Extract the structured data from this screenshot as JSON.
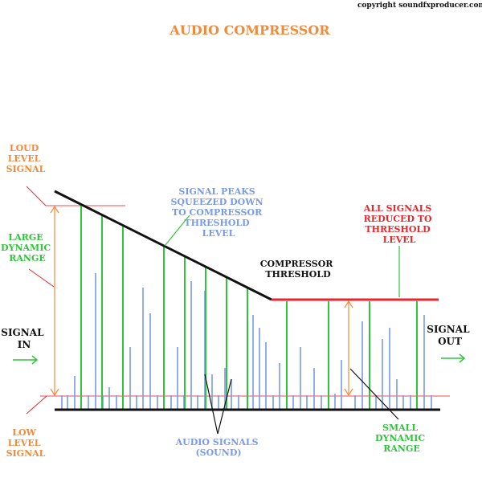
{
  "copyright": "copyright soundfxproducer.com",
  "title": "AUDIO COMPRESSOR",
  "labels": {
    "loud_level_signal": [
      "LOUD",
      "LEVEL",
      "SIGNAL"
    ],
    "large_dynamic_range": [
      "LARGE",
      "DYNAMIC",
      "RANGE"
    ],
    "signal_in": [
      "SIGNAL",
      "IN"
    ],
    "low_level_signal": [
      "LOW",
      "LEVEL",
      "SIGNAL"
    ],
    "signal_peaks": [
      "SIGNAL PEAKS",
      "SQUEEZED DOWN",
      "TO COMPRESSOR",
      "THRESHOLD",
      "LEVEL"
    ],
    "all_signals_reduced": [
      "ALL SIGNALS",
      "REDUCED TO",
      "THRESHOLD",
      "LEVEL"
    ],
    "compressor_threshold": [
      "COMPRESSOR",
      "THRESHOLD"
    ],
    "signal_out": [
      "SIGNAL",
      "OUT"
    ],
    "audio_signals": [
      "AUDIO SIGNALS",
      "(SOUND)"
    ],
    "small_dynamic_range": [
      "SMALL",
      "DYNAMIC",
      "RANGE"
    ]
  },
  "colors": {
    "orange": "#f08a3c",
    "green": "#2fc43b",
    "blue": "#7a9ae8",
    "red": "#e8262b",
    "black": "#111111",
    "pink": "#f07070"
  }
}
